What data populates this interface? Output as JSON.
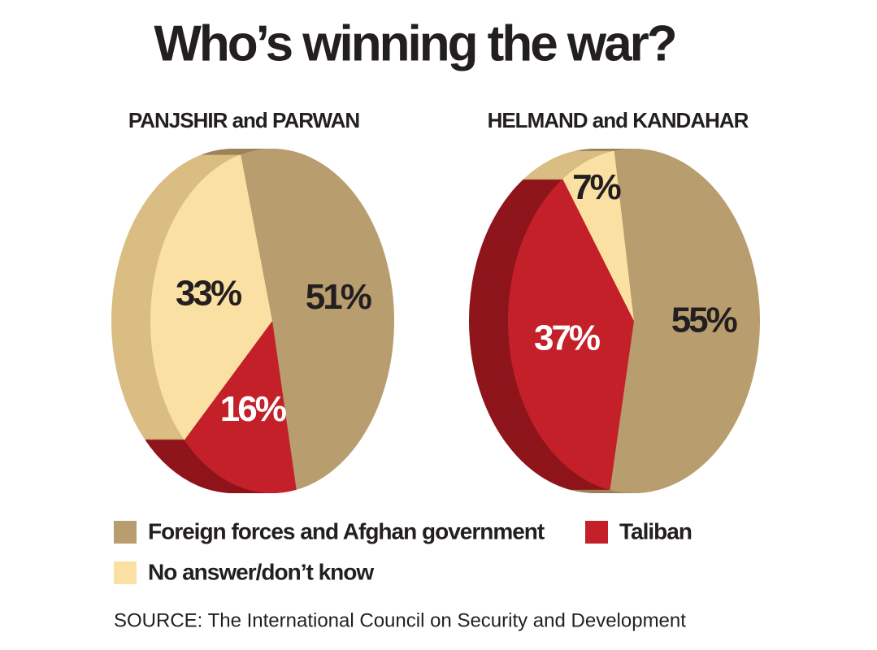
{
  "title": "Who’s winning the war?",
  "legend": {
    "names": [
      "Foreign forces and Afghan government",
      "Taliban",
      "No answer/don’t know"
    ],
    "colors": [
      "#b89d6f",
      "#c4202a",
      "#fbe0a4"
    ],
    "side_colors": [
      "#9c8259",
      "#8e151b",
      "#d9bd82"
    ],
    "label_colors": [
      "#231f20",
      "#ffffff",
      "#231f20"
    ]
  },
  "chart_data": [
    {
      "type": "pie",
      "title": "PANJSHIR and PARWAN",
      "values": [
        51,
        16,
        33
      ],
      "value_labels": [
        "51%",
        "16%",
        "33%"
      ],
      "start_angle": -15
    },
    {
      "type": "pie",
      "title": "HELMAND and KANDAHAR",
      "values": [
        55,
        37,
        7
      ],
      "value_labels": [
        "55%",
        "37%",
        "7%"
      ],
      "start_angle": -9
    }
  ],
  "source": "SOURCE: The International Council on Security and Development"
}
